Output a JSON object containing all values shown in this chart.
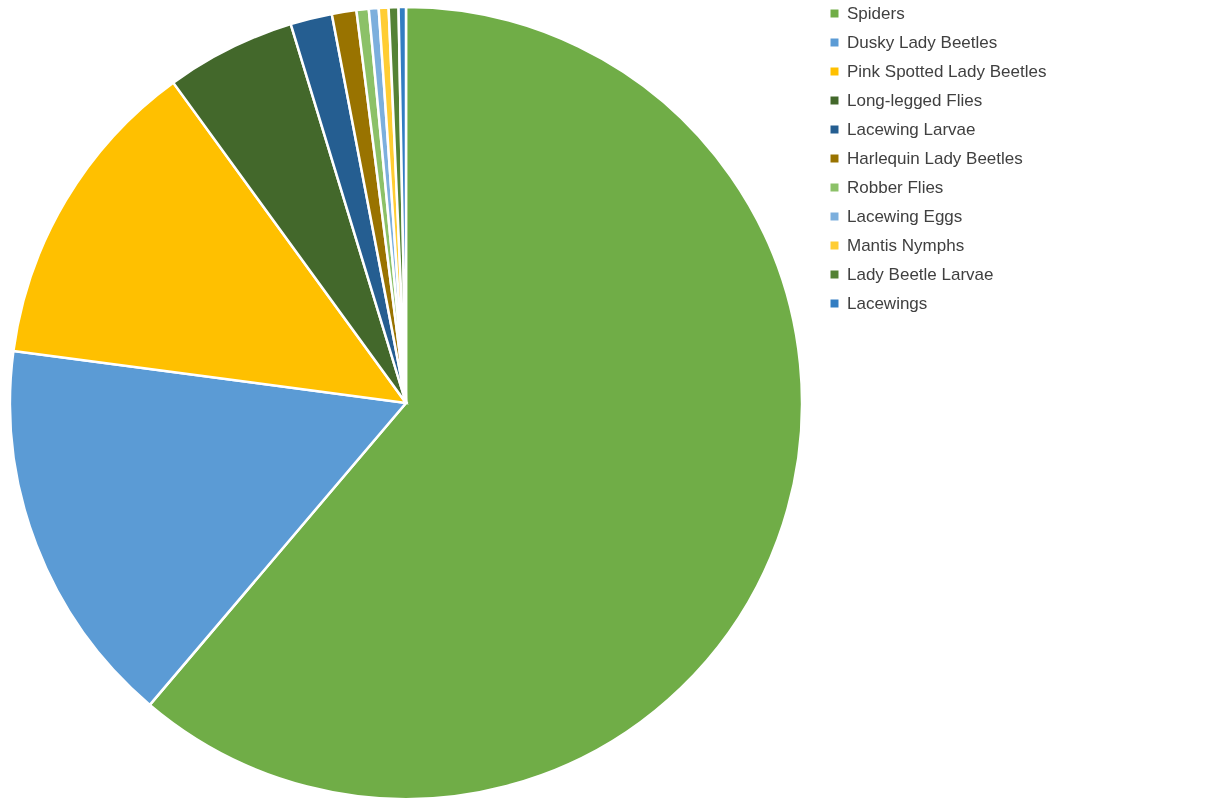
{
  "chart_data": {
    "type": "pie",
    "categories": [
      "Spiders",
      "Dusky Lady Beetles",
      "Pink Spotted Lady Beetles",
      "Long-legged Flies",
      "Lacewing Larvae",
      "Harlequin Lady Beetles",
      "Robber Flies",
      "Lacewing Eggs",
      "Mantis Nymphs",
      "Lady Beetle Larvae",
      "Lacewings"
    ],
    "values": [
      61.2,
      15.9,
      12.9,
      5.3,
      1.7,
      1.0,
      0.5,
      0.4,
      0.4,
      0.4,
      0.3
    ],
    "colors": [
      "#70ad47",
      "#5b9bd5",
      "#ffc000",
      "#43682b",
      "#255e91",
      "#997300",
      "#8cc168",
      "#7cafdd",
      "#ffcd33",
      "#548235",
      "#327dc2"
    ],
    "legend": "right"
  }
}
